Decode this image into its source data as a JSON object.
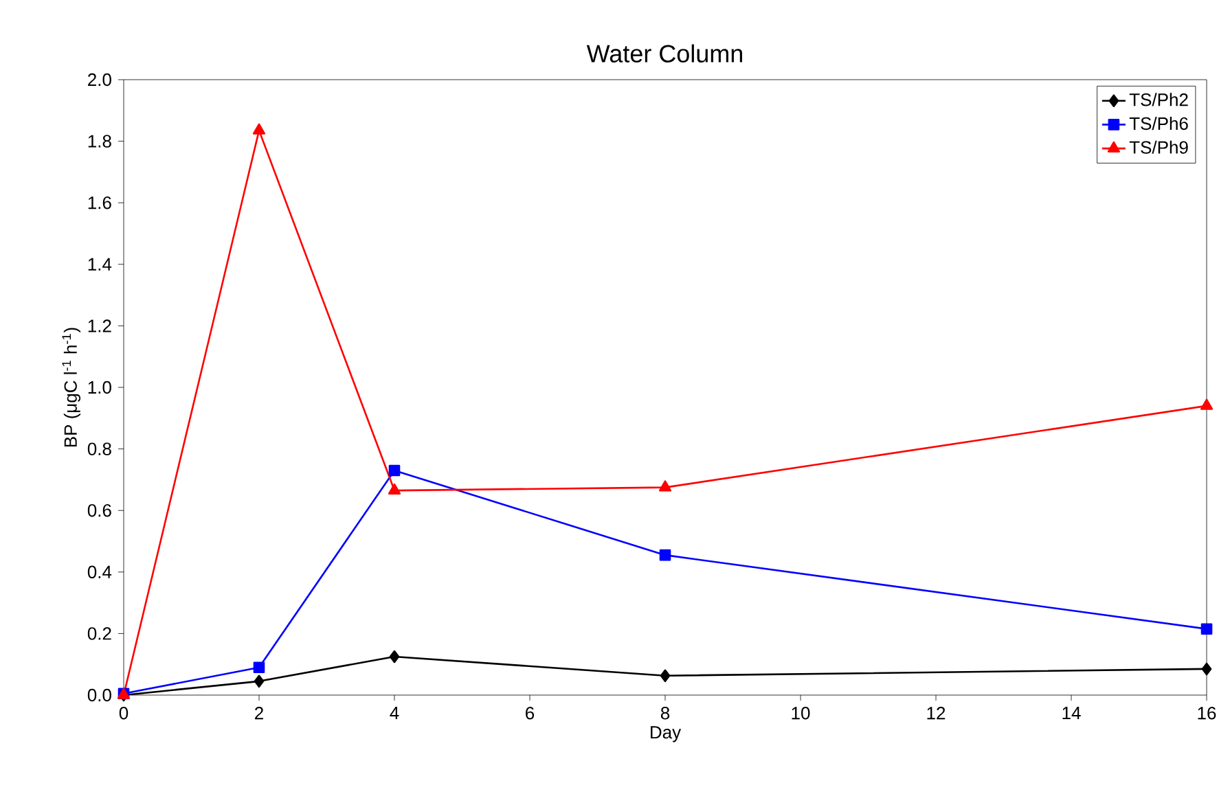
{
  "chart_data": {
    "type": "line",
    "title": "Water Column",
    "xlabel": "Day",
    "ylabel": "BP (μgC l$^{-1}$ h$^{-1}$)",
    "x": [
      0,
      2,
      4,
      8,
      16
    ],
    "series": [
      {
        "name": "TS/Ph2",
        "color": "#000000",
        "marker": "diamond",
        "values": [
          0,
          0.045,
          0.125,
          0.063,
          0.085
        ]
      },
      {
        "name": "TS/Ph6",
        "color": "#0000ff",
        "marker": "square",
        "values": [
          0.005,
          0.09,
          0.73,
          0.455,
          0.215
        ]
      },
      {
        "name": "TS/Ph9",
        "color": "#ff0000",
        "marker": "triangle",
        "values": [
          0,
          1.835,
          0.665,
          0.675,
          0.94
        ]
      }
    ],
    "xlim": [
      0,
      16
    ],
    "ylim": [
      0,
      2.0
    ],
    "xticks": [
      0,
      2,
      4,
      6,
      8,
      10,
      12,
      14,
      16
    ],
    "yticks": [
      {
        "value": 0,
        "label": "0.0"
      },
      {
        "value": 0.2,
        "label": "0.2"
      },
      {
        "value": 0.4,
        "label": "0.4"
      },
      {
        "value": 0.6,
        "label": "0.6"
      },
      {
        "value": 0.8,
        "label": "0.8"
      },
      {
        "value": 1.0,
        "label": "1.0"
      },
      {
        "value": 1.2,
        "label": "1.2"
      },
      {
        "value": 1.4,
        "label": "1.4"
      },
      {
        "value": 1.6,
        "label": "1.6"
      },
      {
        "value": 1.8,
        "label": "1.8"
      },
      {
        "value": 2.0,
        "label": "2.0"
      }
    ],
    "grid": false,
    "legend": "top right",
    "line_style": "solid"
  }
}
